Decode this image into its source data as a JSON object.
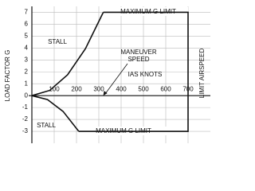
{
  "chart_data": {
    "type": "vg",
    "ylabel": "LOAD FACTOR G",
    "xlabel": "IAS KNOTS",
    "ylim": [
      -4,
      7.5
    ],
    "yticks": [
      -3,
      -2,
      -1,
      0,
      1,
      2,
      3,
      4,
      5,
      6,
      7
    ],
    "xlim": [
      0,
      800
    ],
    "xticks": [
      100,
      200,
      300,
      400,
      500,
      600,
      700
    ],
    "grid": true,
    "color": "#111111",
    "lines": [
      {
        "x": [
          0,
          80,
          160,
          240,
          320
        ],
        "values": [
          0,
          0.44,
          1.75,
          3.94,
          7
        ]
      },
      {
        "x": [
          0,
          70,
          140,
          210
        ],
        "values": [
          0,
          -0.33,
          -1.33,
          -3
        ]
      },
      {
        "x": [
          320,
          700,
          700,
          210
        ],
        "values": [
          7,
          7,
          -3,
          -3
        ]
      }
    ],
    "annotations": {
      "stall_upper": "STALL",
      "stall_lower": "STALL",
      "maneuver": [
        "MANEUVER",
        "SPEED"
      ],
      "max_g_upper": "MAXIMUM G LIMIT",
      "max_g_lower": "MAXIMUM G LIMIT",
      "limit_airspeed": "LIMIT AIRSPEED"
    }
  }
}
